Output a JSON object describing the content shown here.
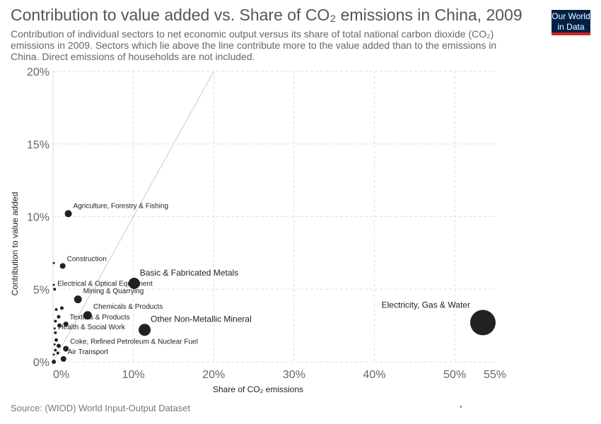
{
  "header": {
    "title": "Contribution to value added vs. Share of CO₂ emissions in China, 2009",
    "subtitle": "Contribution of individual sectors to net economic output versus its share of total national carbon dioxide (CO₂) emissions in 2009. Sectors which lie above the line contribute more to the value added than to the emissions in China. Direct emissions of households are not included.",
    "logo_line1": "Our World",
    "logo_line2": "in Data"
  },
  "footer": {
    "source": "Source: (WIOD) World Input-Output Dataset",
    "marker": "•"
  },
  "chart_data": {
    "type": "scatter",
    "xlabel": "Share of CO₂ emissions",
    "ylabel": "Contribution to value added",
    "xlim": [
      0,
      55
    ],
    "ylim": [
      0,
      20
    ],
    "x_ticks": [
      0,
      10,
      20,
      30,
      40,
      50,
      55
    ],
    "x_tick_labels": [
      "0%",
      "10%",
      "20%",
      "30%",
      "40%",
      "50%",
      "55%"
    ],
    "y_ticks": [
      0,
      5,
      10,
      15,
      20
    ],
    "y_tick_labels": [
      "0%",
      "5%",
      "10%",
      "15%",
      "20%"
    ],
    "grid": true,
    "reference_line": {
      "from": [
        0,
        0
      ],
      "to": [
        20,
        20
      ]
    },
    "colors": {
      "points": "#222222",
      "grid": "#dddddd",
      "line": "#cccccc"
    },
    "points": [
      {
        "label": "Agriculture, Forestry & Fishing",
        "x": 1.9,
        "y": 10.2,
        "size": 5
      },
      {
        "label": "Construction",
        "x": 1.2,
        "y": 6.6,
        "size": 4
      },
      {
        "label": "Basic & Fabricated Metals",
        "x": 10.1,
        "y": 5.4,
        "size": 8
      },
      {
        "label": "Electrical & Optical Equipment",
        "x": 0.2,
        "y": 5.0,
        "size": 2
      },
      {
        "label": "Mining & Quarrying",
        "x": 3.1,
        "y": 4.3,
        "size": 5.5
      },
      {
        "label": "Chemicals & Products",
        "x": 4.3,
        "y": 3.2,
        "size": 6
      },
      {
        "label": "Electricity, Gas & Water",
        "x": 53.5,
        "y": 2.7,
        "size": 18
      },
      {
        "label": "Textiles & Products",
        "x": 1.6,
        "y": 2.6,
        "size": 3.5
      },
      {
        "label": "Other Non-Metallic Mineral",
        "x": 11.4,
        "y": 2.2,
        "size": 8.5
      },
      {
        "label": "Health & Social Work",
        "x": 0.3,
        "y": 2.0,
        "size": 2
      },
      {
        "label": "Coke, Refined Petroleum & Nuclear Fuel",
        "x": 1.6,
        "y": 0.9,
        "size": 4
      },
      {
        "label": "Air Transport",
        "x": 1.3,
        "y": 0.2,
        "size": 4
      },
      {
        "label": "",
        "x": 0.1,
        "y": 6.8,
        "size": 1.5
      },
      {
        "label": "",
        "x": 0.1,
        "y": 5.3,
        "size": 1.5
      },
      {
        "label": "",
        "x": 0.4,
        "y": 3.6,
        "size": 2
      },
      {
        "label": "",
        "x": 1.1,
        "y": 3.7,
        "size": 2.5
      },
      {
        "label": "",
        "x": 0.7,
        "y": 3.1,
        "size": 2.5
      },
      {
        "label": "",
        "x": 0.3,
        "y": 2.8,
        "size": 2
      },
      {
        "label": "",
        "x": 0.8,
        "y": 2.5,
        "size": 3
      },
      {
        "label": "",
        "x": 0.2,
        "y": 2.3,
        "size": 1.5
      },
      {
        "label": "",
        "x": 0.4,
        "y": 1.5,
        "size": 2.5
      },
      {
        "label": "",
        "x": 0.2,
        "y": 1.2,
        "size": 1.5
      },
      {
        "label": "",
        "x": 0.7,
        "y": 1.1,
        "size": 3
      },
      {
        "label": "",
        "x": 0.3,
        "y": 0.8,
        "size": 2
      },
      {
        "label": "",
        "x": 0.6,
        "y": 0.6,
        "size": 2
      },
      {
        "label": "",
        "x": 0.1,
        "y": 0.5,
        "size": 1.5
      },
      {
        "label": "",
        "x": 0.1,
        "y": 0.0,
        "size": 3
      }
    ]
  }
}
